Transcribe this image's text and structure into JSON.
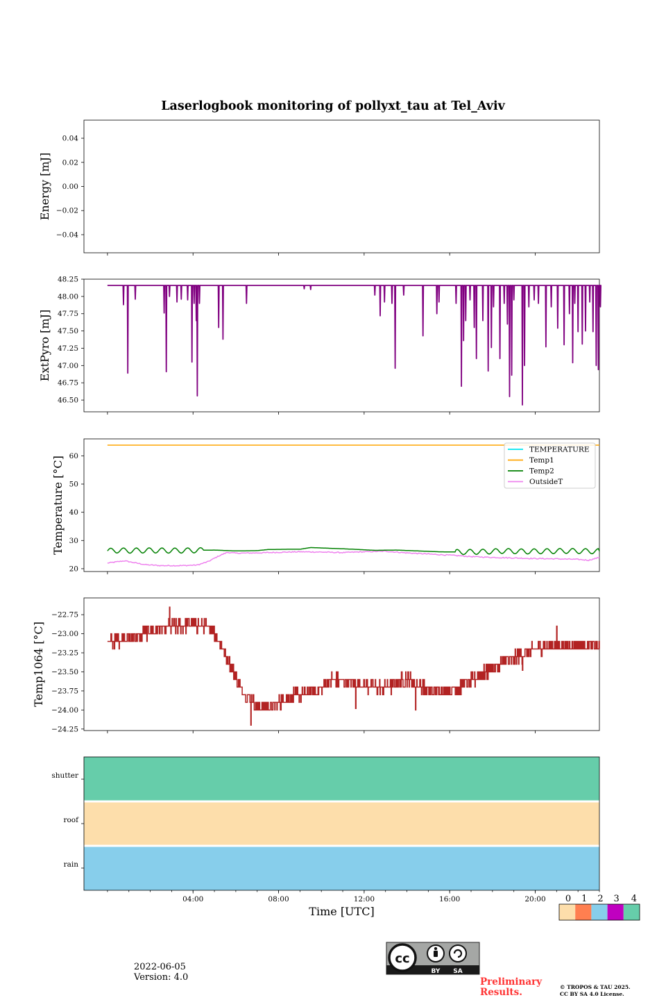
{
  "title": "Laserlogbook monitoring of pollyxt_tau at Tel_Aviv",
  "date_text": "2022-06-05",
  "version_text": "Version: 4.0",
  "preliminary_text": "Preliminary Results.",
  "preliminary_lines": [
    "Preliminary",
    "Results."
  ],
  "copyright_lines": [
    "© TROPOS & TAU 2025.",
    "CC BY SA 4.0 License."
  ],
  "license_badge": {
    "icon": "cc-by-sa-icon",
    "labels": [
      "BY",
      "SA"
    ]
  },
  "colors": {
    "extpyro": "#800080",
    "temperature": "#00e5ee",
    "temp1": "#ffa500",
    "temp2": "#008000",
    "outsidet": "#ee82ee",
    "temp1064": "#b22222",
    "flag_0": "#fddeab",
    "flag_1": "#ff7f50",
    "flag_2": "#87ceeb",
    "flag_3": "#c000c0",
    "flag_4": "#66cdaa"
  },
  "chart_data": [
    {
      "id": "energy",
      "type": "line",
      "ylabel": "Energy [mJ]",
      "ylim": [
        -0.055,
        0.055
      ],
      "yticks": [
        -0.04,
        -0.02,
        0.0,
        0.02,
        0.04
      ],
      "ytick_labels": [
        "−0.04",
        "−0.02",
        "0.00",
        "0.02",
        "0.04"
      ],
      "series": []
    },
    {
      "id": "extpyro",
      "type": "line",
      "ylabel": "ExtPyro [mJ]",
      "ylim": [
        46.33,
        48.25
      ],
      "yticks": [
        46.5,
        46.75,
        47.0,
        47.25,
        47.5,
        47.75,
        48.0,
        48.25
      ],
      "ytick_labels": [
        "46.50",
        "46.75",
        "47.00",
        "47.25",
        "47.50",
        "47.75",
        "48.00",
        "48.25"
      ],
      "baseline": 48.16,
      "dips": [
        [
          0.75,
          47.88
        ],
        [
          0.95,
          46.89
        ],
        [
          1.3,
          47.96
        ],
        [
          2.65,
          47.76
        ],
        [
          2.75,
          46.91
        ],
        [
          2.9,
          48.0
        ],
        [
          3.25,
          47.92
        ],
        [
          3.45,
          47.96
        ],
        [
          3.75,
          47.95
        ],
        [
          3.95,
          47.05
        ],
        [
          4.05,
          47.9
        ],
        [
          4.15,
          47.65
        ],
        [
          4.2,
          46.56
        ],
        [
          4.3,
          47.9
        ],
        [
          5.2,
          47.55
        ],
        [
          5.4,
          47.38
        ],
        [
          6.5,
          47.9
        ],
        [
          9.2,
          48.11
        ],
        [
          9.5,
          48.1
        ],
        [
          12.5,
          48.02
        ],
        [
          12.75,
          47.72
        ],
        [
          12.95,
          47.92
        ],
        [
          13.3,
          47.9
        ],
        [
          13.45,
          46.96
        ],
        [
          13.85,
          48.02
        ],
        [
          14.75,
          47.43
        ],
        [
          15.4,
          47.75
        ],
        [
          15.5,
          47.92
        ],
        [
          16.3,
          47.9
        ],
        [
          16.55,
          46.7
        ],
        [
          16.65,
          47.36
        ],
        [
          16.75,
          47.65
        ],
        [
          16.95,
          47.95
        ],
        [
          17.15,
          47.55
        ],
        [
          17.25,
          47.1
        ],
        [
          17.55,
          47.65
        ],
        [
          17.8,
          46.92
        ],
        [
          17.95,
          47.26
        ],
        [
          18.05,
          47.85
        ],
        [
          18.35,
          47.1
        ],
        [
          18.55,
          47.9
        ],
        [
          18.7,
          47.6
        ],
        [
          18.8,
          46.55
        ],
        [
          18.9,
          46.86
        ],
        [
          19.0,
          47.95
        ],
        [
          19.4,
          46.43
        ],
        [
          19.5,
          47.0
        ],
        [
          19.7,
          47.85
        ],
        [
          19.95,
          47.95
        ],
        [
          20.15,
          47.9
        ],
        [
          20.5,
          47.27
        ],
        [
          20.75,
          47.85
        ],
        [
          21.05,
          47.54
        ],
        [
          21.35,
          47.3
        ],
        [
          21.6,
          47.75
        ],
        [
          21.75,
          47.04
        ],
        [
          21.85,
          47.9
        ],
        [
          22.0,
          47.49
        ],
        [
          22.2,
          47.31
        ],
        [
          22.35,
          47.5
        ],
        [
          22.55,
          47.92
        ],
        [
          22.7,
          47.49
        ],
        [
          22.85,
          47.0
        ],
        [
          22.95,
          46.94
        ],
        [
          23.05,
          47.85
        ]
      ]
    },
    {
      "id": "temperature",
      "type": "line",
      "ylabel": "Temperature [°C]",
      "ylim": [
        19,
        66
      ],
      "yticks": [
        20,
        30,
        40,
        50,
        60
      ],
      "ytick_labels": [
        "20",
        "30",
        "40",
        "50",
        "60"
      ],
      "legend": {
        "placement": "top-right",
        "entries": [
          "TEMPERATURE",
          "Temp1",
          "Temp2",
          "OutsideT"
        ]
      },
      "temp1_value": 63.8,
      "temp2_points": [
        [
          0.0,
          26.3
        ],
        [
          0.5,
          26.5
        ],
        [
          1.0,
          26.4
        ],
        [
          2.0,
          26.5
        ],
        [
          3.0,
          26.4
        ],
        [
          4.0,
          26.5
        ],
        [
          5.0,
          26.6
        ],
        [
          6.0,
          26.3
        ],
        [
          7.0,
          26.4
        ],
        [
          7.5,
          26.8
        ],
        [
          8.5,
          26.9
        ],
        [
          9.0,
          26.9
        ],
        [
          9.5,
          27.5
        ],
        [
          10.5,
          27.2
        ],
        [
          11.5,
          26.9
        ],
        [
          12.5,
          26.5
        ],
        [
          13.5,
          26.6
        ],
        [
          14.5,
          26.3
        ],
        [
          15.5,
          26.0
        ],
        [
          16.5,
          25.9
        ],
        [
          17.5,
          26.0
        ],
        [
          18.5,
          26.3
        ],
        [
          19.5,
          26.1
        ],
        [
          20.5,
          26.2
        ],
        [
          21.5,
          26.3
        ],
        [
          22.5,
          26.2
        ],
        [
          23.0,
          26.2
        ]
      ],
      "temp2_oscillating_ranges": [
        [
          0.0,
          4.5
        ],
        [
          16.3,
          23.0
        ]
      ],
      "temp2_oscillation_amplitude": 0.9,
      "outsidet_points": [
        [
          0.0,
          22.0
        ],
        [
          0.5,
          22.5
        ],
        [
          0.8,
          22.8
        ],
        [
          1.2,
          22.2
        ],
        [
          1.8,
          21.4
        ],
        [
          2.5,
          21.1
        ],
        [
          3.5,
          21.1
        ],
        [
          4.2,
          21.3
        ],
        [
          4.7,
          22.5
        ],
        [
          5.2,
          24.5
        ],
        [
          5.6,
          25.8
        ],
        [
          6.0,
          25.5
        ],
        [
          7.0,
          25.6
        ],
        [
          8.0,
          25.8
        ],
        [
          9.0,
          26.0
        ],
        [
          10.0,
          25.9
        ],
        [
          11.0,
          25.7
        ],
        [
          12.0,
          26.0
        ],
        [
          13.0,
          26.2
        ],
        [
          14.0,
          25.6
        ],
        [
          15.0,
          25.2
        ],
        [
          16.0,
          24.8
        ],
        [
          17.0,
          24.3
        ],
        [
          18.0,
          24.0
        ],
        [
          19.0,
          23.8
        ],
        [
          20.0,
          23.6
        ],
        [
          21.0,
          23.5
        ],
        [
          22.0,
          23.3
        ],
        [
          22.5,
          23.0
        ],
        [
          23.0,
          24.0
        ]
      ]
    },
    {
      "id": "temp1064",
      "type": "line",
      "ylabel": "Temp1064 [°C]",
      "ylim": [
        -24.27,
        -22.53
      ],
      "yticks": [
        -24.25,
        -24.0,
        -23.75,
        -23.5,
        -23.25,
        -23.0,
        -22.75
      ],
      "ytick_labels": [
        "−24.25",
        "−24.00",
        "−23.75",
        "−23.50",
        "−23.25",
        "−23.00",
        "−22.75"
      ],
      "step": 0.1,
      "trend": [
        [
          0.0,
          -23.1
        ],
        [
          1.0,
          -23.05
        ],
        [
          2.0,
          -22.98
        ],
        [
          3.0,
          -22.9
        ],
        [
          4.0,
          -22.88
        ],
        [
          4.8,
          -22.92
        ],
        [
          5.3,
          -23.15
        ],
        [
          5.8,
          -23.45
        ],
        [
          6.3,
          -23.75
        ],
        [
          7.0,
          -23.95
        ],
        [
          7.8,
          -23.95
        ],
        [
          8.5,
          -23.82
        ],
        [
          9.3,
          -23.78
        ],
        [
          9.8,
          -23.75
        ],
        [
          10.5,
          -23.6
        ],
        [
          11.2,
          -23.62
        ],
        [
          12.0,
          -23.68
        ],
        [
          13.0,
          -23.72
        ],
        [
          14.0,
          -23.58
        ],
        [
          15.0,
          -23.75
        ],
        [
          16.0,
          -23.76
        ],
        [
          17.0,
          -23.62
        ],
        [
          18.0,
          -23.45
        ],
        [
          19.0,
          -23.32
        ],
        [
          20.0,
          -23.2
        ],
        [
          21.0,
          -23.15
        ],
        [
          22.0,
          -23.15
        ],
        [
          23.0,
          -23.18
        ]
      ],
      "spikes": [
        [
          2.9,
          -22.65
        ],
        [
          6.7,
          -24.2
        ],
        [
          21.0,
          -22.9
        ],
        [
          14.4,
          -24.0
        ],
        [
          11.6,
          -23.98
        ],
        [
          19.4,
          -23.48
        ]
      ]
    },
    {
      "id": "flags",
      "type": "heatmap",
      "rows": [
        "shutter",
        "roof",
        "rain"
      ],
      "row_values": [
        4,
        0,
        2
      ],
      "xlabel": "Time [UTC]",
      "xlim": [
        -1.1,
        23.0
      ],
      "xticks": [
        4,
        8,
        12,
        16,
        20
      ],
      "xtick_labels": [
        "04:00",
        "08:00",
        "12:00",
        "16:00",
        "20:00"
      ],
      "colorbar": {
        "ticks": [
          "0",
          "1",
          "2",
          "3",
          "4"
        ]
      }
    }
  ]
}
